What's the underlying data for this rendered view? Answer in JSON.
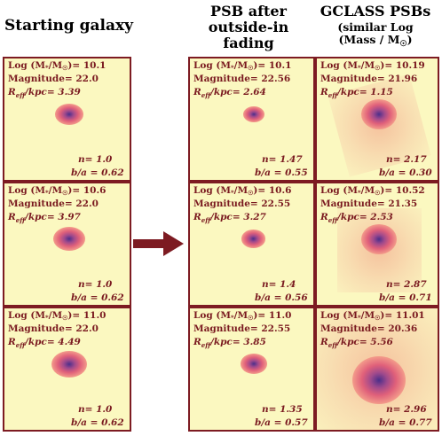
{
  "headers": {
    "col1": "Starting galaxy",
    "col2": [
      "PSB after",
      "outside-in",
      "fading"
    ],
    "col3": "GCLASS PSBs",
    "col3_sub": [
      "(similar Log",
      "(Mass / M",
      ")"
    ]
  },
  "labels": {
    "mass": "Log (M",
    "mass_mid": "/M",
    "mass_end": ")=",
    "magnitude": "Magnitude=",
    "reff": "R",
    "reff_sub": "eff",
    "reff_end": "/kpc=",
    "n": "n=",
    "ba": "b/a ="
  },
  "panels": [
    {
      "col": "starting",
      "row": 0,
      "mass": "10.1",
      "mag": "22.0",
      "reff": "3.39",
      "n": "1.0",
      "ba": "0.62"
    },
    {
      "col": "psb",
      "row": 0,
      "mass": "10.1",
      "mag": "22.56",
      "reff": "2.64",
      "n": "1.47",
      "ba": "0.55"
    },
    {
      "col": "gclass",
      "row": 0,
      "mass": "10.19",
      "mag": "21.96",
      "reff": "1.15",
      "n": "2.17",
      "ba": "0.30"
    },
    {
      "col": "starting",
      "row": 1,
      "mass": "10.6",
      "mag": "22.0",
      "reff": "3.97",
      "n": "1.0",
      "ba": "0.62"
    },
    {
      "col": "psb",
      "row": 1,
      "mass": "10.6",
      "mag": "22.55",
      "reff": "3.27",
      "n": "1.4",
      "ba": "0.56"
    },
    {
      "col": "gclass",
      "row": 1,
      "mass": "10.52",
      "mag": "21.35",
      "reff": "2.53",
      "n": "2.87",
      "ba": "0.71"
    },
    {
      "col": "starting",
      "row": 2,
      "mass": "11.0",
      "mag": "22.0",
      "reff": "4.49",
      "n": "1.0",
      "ba": "0.62"
    },
    {
      "col": "psb",
      "row": 2,
      "mass": "11.0",
      "mag": "22.55",
      "reff": "3.85",
      "n": "1.35",
      "ba": "0.57"
    },
    {
      "col": "gclass",
      "row": 2,
      "mass": "11.01",
      "mag": "20.36",
      "reff": "5.56",
      "n": "2.96",
      "ba": "0.77"
    }
  ],
  "colors": {
    "border": "#7d1b22",
    "panel_bg": "#fbf8c0",
    "text": "#7a1a20",
    "arrow": "#7d1b22"
  }
}
